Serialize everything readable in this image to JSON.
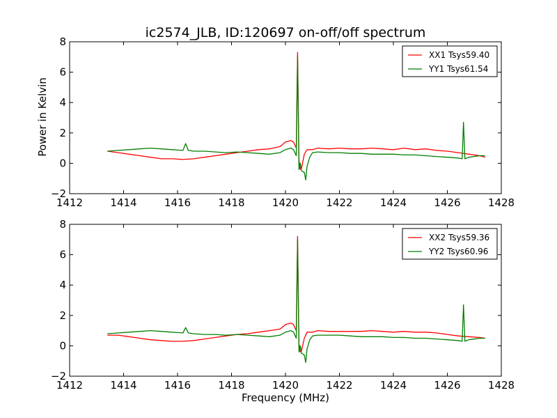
{
  "title": "ic2574_JLB, ID:120697 on-off/off spectrum",
  "xlabel": "Frequency (MHz)",
  "ylabel": "Power in Kelvin",
  "colors": {
    "red": "#ff0000",
    "green": "#007f00"
  },
  "chart_data": [
    {
      "type": "line",
      "xlim": [
        1412,
        1428
      ],
      "ylim": [
        -2,
        8
      ],
      "xticks": [
        "1412",
        "1414",
        "1416",
        "1418",
        "1420",
        "1422",
        "1424",
        "1426",
        "1428"
      ],
      "yticks": [
        "−2",
        "0",
        "2",
        "4",
        "6",
        "8"
      ],
      "legend_position": "top-right",
      "series": [
        {
          "name": "XX1 Tsys59.40",
          "color": "#ff0000",
          "x": [
            1413.4,
            1413.8,
            1414.2,
            1414.6,
            1415.0,
            1415.4,
            1415.8,
            1416.2,
            1416.6,
            1417.0,
            1417.4,
            1417.8,
            1418.2,
            1418.6,
            1419.0,
            1419.4,
            1419.8,
            1420.0,
            1420.2,
            1420.3,
            1420.4,
            1420.45,
            1420.5,
            1420.55,
            1420.6,
            1420.7,
            1420.8,
            1421.0,
            1421.2,
            1421.6,
            1422.0,
            1422.4,
            1422.8,
            1423.2,
            1423.6,
            1424.0,
            1424.4,
            1424.8,
            1425.2,
            1425.6,
            1426.0,
            1426.4,
            1426.8,
            1427.2,
            1427.4
          ],
          "y": [
            0.8,
            0.7,
            0.6,
            0.5,
            0.4,
            0.3,
            0.3,
            0.25,
            0.3,
            0.4,
            0.5,
            0.6,
            0.7,
            0.8,
            0.9,
            0.95,
            1.1,
            1.4,
            1.5,
            1.4,
            1.0,
            7.3,
            0.2,
            -0.4,
            -0.3,
            0.6,
            0.9,
            0.9,
            1.0,
            0.95,
            1.0,
            0.95,
            0.95,
            1.0,
            0.95,
            0.9,
            1.0,
            0.9,
            0.95,
            0.85,
            0.8,
            0.7,
            0.6,
            0.5,
            0.4
          ]
        },
        {
          "name": "YY1 Tsys61.54",
          "color": "#007f00",
          "x": [
            1413.4,
            1413.8,
            1414.2,
            1414.6,
            1415.0,
            1415.4,
            1415.8,
            1416.2,
            1416.3,
            1416.4,
            1416.6,
            1417.0,
            1417.4,
            1417.8,
            1418.2,
            1418.6,
            1419.0,
            1419.4,
            1419.8,
            1420.0,
            1420.2,
            1420.3,
            1420.4,
            1420.45,
            1420.5,
            1420.55,
            1420.6,
            1420.7,
            1420.75,
            1420.8,
            1420.9,
            1421.0,
            1421.2,
            1421.6,
            1422.0,
            1422.4,
            1422.8,
            1423.2,
            1423.6,
            1424.0,
            1424.4,
            1424.8,
            1425.2,
            1425.6,
            1426.0,
            1426.4,
            1426.55,
            1426.6,
            1426.65,
            1426.8,
            1427.2,
            1427.4
          ],
          "y": [
            0.8,
            0.85,
            0.9,
            0.95,
            1.0,
            0.95,
            0.9,
            0.85,
            1.3,
            0.85,
            0.8,
            0.8,
            0.75,
            0.7,
            0.75,
            0.7,
            0.65,
            0.6,
            0.7,
            0.9,
            1.0,
            0.9,
            0.5,
            7.0,
            -0.4,
            0.0,
            -0.5,
            -0.6,
            -1.1,
            -0.2,
            0.4,
            0.7,
            0.75,
            0.7,
            0.7,
            0.65,
            0.65,
            0.6,
            0.6,
            0.6,
            0.55,
            0.55,
            0.5,
            0.45,
            0.4,
            0.35,
            0.3,
            2.7,
            0.3,
            0.4,
            0.5,
            0.5
          ]
        }
      ]
    },
    {
      "type": "line",
      "xlim": [
        1412,
        1428
      ],
      "ylim": [
        -2,
        8
      ],
      "xticks": [
        "1412",
        "1414",
        "1416",
        "1418",
        "1420",
        "1422",
        "1424",
        "1426",
        "1428"
      ],
      "yticks": [
        "−2",
        "0",
        "2",
        "4",
        "6",
        "8"
      ],
      "legend_position": "top-right",
      "series": [
        {
          "name": "XX2 Tsys59.36",
          "color": "#ff0000",
          "x": [
            1413.4,
            1413.8,
            1414.2,
            1414.6,
            1415.0,
            1415.4,
            1415.8,
            1416.2,
            1416.6,
            1417.0,
            1417.4,
            1417.8,
            1418.2,
            1418.6,
            1419.0,
            1419.4,
            1419.8,
            1420.0,
            1420.2,
            1420.3,
            1420.4,
            1420.45,
            1420.5,
            1420.55,
            1420.6,
            1420.7,
            1420.8,
            1421.0,
            1421.2,
            1421.6,
            1422.0,
            1422.4,
            1422.8,
            1423.2,
            1423.6,
            1424.0,
            1424.4,
            1424.8,
            1425.2,
            1425.6,
            1426.0,
            1426.4,
            1426.8,
            1427.2,
            1427.4
          ],
          "y": [
            0.7,
            0.7,
            0.6,
            0.5,
            0.4,
            0.35,
            0.3,
            0.3,
            0.35,
            0.45,
            0.55,
            0.65,
            0.75,
            0.8,
            0.9,
            1.0,
            1.1,
            1.4,
            1.5,
            1.4,
            1.0,
            7.2,
            0.1,
            -0.4,
            -0.3,
            0.5,
            0.9,
            0.9,
            1.0,
            0.95,
            0.95,
            0.95,
            0.95,
            1.0,
            0.95,
            0.9,
            0.95,
            0.9,
            0.9,
            0.85,
            0.75,
            0.65,
            0.6,
            0.55,
            0.5
          ]
        },
        {
          "name": "YY2 Tsys60.96",
          "color": "#007f00",
          "x": [
            1413.4,
            1413.8,
            1414.2,
            1414.6,
            1415.0,
            1415.4,
            1415.8,
            1416.2,
            1416.3,
            1416.4,
            1416.6,
            1417.0,
            1417.4,
            1417.8,
            1418.2,
            1418.6,
            1419.0,
            1419.4,
            1419.8,
            1420.0,
            1420.2,
            1420.3,
            1420.4,
            1420.45,
            1420.5,
            1420.55,
            1420.6,
            1420.7,
            1420.75,
            1420.8,
            1420.9,
            1421.0,
            1421.2,
            1421.6,
            1422.0,
            1422.4,
            1422.8,
            1423.2,
            1423.6,
            1424.0,
            1424.4,
            1424.8,
            1425.2,
            1425.6,
            1426.0,
            1426.4,
            1426.55,
            1426.6,
            1426.65,
            1426.8,
            1427.2,
            1427.4
          ],
          "y": [
            0.8,
            0.85,
            0.9,
            0.95,
            1.0,
            0.95,
            0.9,
            0.85,
            1.2,
            0.85,
            0.8,
            0.75,
            0.75,
            0.7,
            0.75,
            0.7,
            0.65,
            0.6,
            0.7,
            0.9,
            1.0,
            0.9,
            0.5,
            7.0,
            -0.4,
            0.0,
            -0.5,
            -0.6,
            -1.1,
            -0.2,
            0.4,
            0.65,
            0.7,
            0.7,
            0.7,
            0.65,
            0.6,
            0.6,
            0.6,
            0.55,
            0.55,
            0.5,
            0.5,
            0.45,
            0.4,
            0.35,
            0.3,
            2.7,
            0.3,
            0.4,
            0.5,
            0.5
          ]
        }
      ]
    }
  ]
}
